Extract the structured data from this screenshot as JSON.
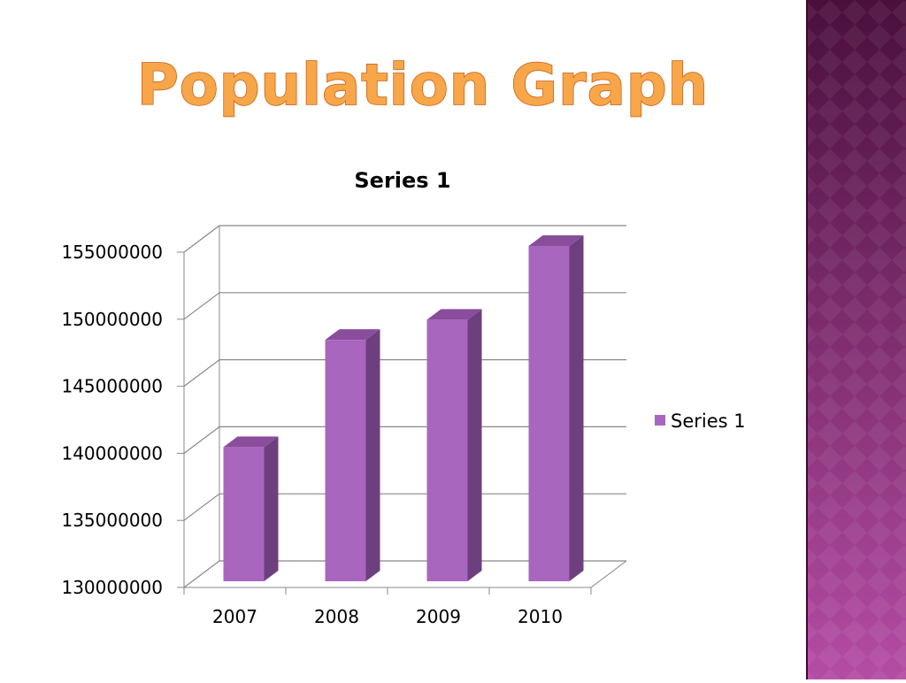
{
  "slide": {
    "title": "Population Graph"
  },
  "chart_data": {
    "type": "bar3d",
    "title": "Series 1",
    "categories": [
      "2007",
      "2008",
      "2009",
      "2010"
    ],
    "series": [
      {
        "name": "Series 1",
        "color": "#a966be",
        "values": [
          140000000,
          148000000,
          149500000,
          155000000
        ]
      }
    ],
    "ylim": [
      130000000,
      155000000
    ],
    "yticks": [
      130000000,
      135000000,
      140000000,
      145000000,
      150000000,
      155000000
    ],
    "grid": true,
    "legend": "right"
  }
}
